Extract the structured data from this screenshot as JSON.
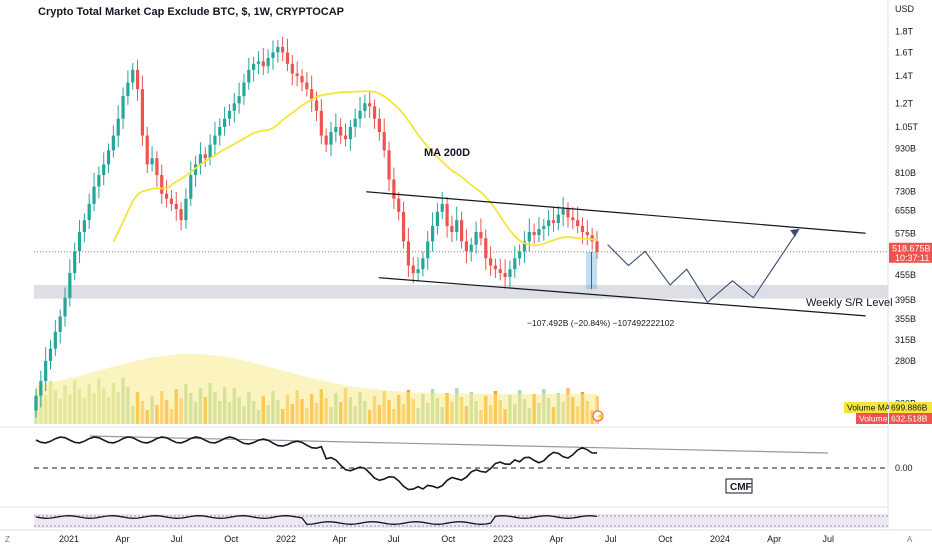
{
  "title": "Crypto Total Market Cap Exclude BTC, $, 1W, CRYPTOCAP",
  "chart_data": {
    "type": "candlestick",
    "currency_label": "USD",
    "y_scale": "log",
    "ylim": [
      0.196,
      1.9
    ],
    "y_ticks": [
      {
        "label": "1.8T",
        "value": 1.8
      },
      {
        "label": "1.6T",
        "value": 1.6
      },
      {
        "label": "1.4T",
        "value": 1.4
      },
      {
        "label": "1.2T",
        "value": 1.2
      },
      {
        "label": "1.05T",
        "value": 1.05
      },
      {
        "label": "930B",
        "value": 0.93
      },
      {
        "label": "810B",
        "value": 0.81
      },
      {
        "label": "730B",
        "value": 0.73
      },
      {
        "label": "655B",
        "value": 0.655
      },
      {
        "label": "575B",
        "value": 0.575
      },
      {
        "label": "455B",
        "value": 0.455
      },
      {
        "label": "395B",
        "value": 0.395
      },
      {
        "label": "355B",
        "value": 0.355
      },
      {
        "label": "315B",
        "value": 0.315
      },
      {
        "label": "280B",
        "value": 0.28
      },
      {
        "label": "220B",
        "value": 0.22
      }
    ],
    "x_ticks": [
      {
        "label": "2021",
        "date": "2021-01-01"
      },
      {
        "label": "Apr",
        "date": "2021-04-01"
      },
      {
        "label": "Jul",
        "date": "2021-07-01"
      },
      {
        "label": "Oct",
        "date": "2021-10-01"
      },
      {
        "label": "2022",
        "date": "2022-01-01"
      },
      {
        "label": "Apr",
        "date": "2022-04-01"
      },
      {
        "label": "Jul",
        "date": "2022-07-01"
      },
      {
        "label": "Oct",
        "date": "2022-10-01"
      },
      {
        "label": "2023",
        "date": "2023-01-01"
      },
      {
        "label": "Apr",
        "date": "2023-04-01"
      },
      {
        "label": "Jul",
        "date": "2023-07-01"
      },
      {
        "label": "Oct",
        "date": "2023-10-01"
      },
      {
        "label": "2024",
        "date": "2024-01-01"
      },
      {
        "label": "Apr",
        "date": "2024-04-01"
      },
      {
        "label": "Jul",
        "date": "2024-07-01"
      }
    ],
    "last_price": {
      "label": "518.675B",
      "countdown": "10:37:11",
      "value": 0.518675
    },
    "close_series_trillions": [
      0.23,
      0.25,
      0.28,
      0.3,
      0.33,
      0.36,
      0.4,
      0.46,
      0.52,
      0.58,
      0.62,
      0.68,
      0.75,
      0.8,
      0.85,
      0.92,
      1.0,
      1.1,
      1.25,
      1.35,
      1.45,
      1.3,
      1.0,
      0.85,
      0.88,
      0.8,
      0.72,
      0.7,
      0.68,
      0.66,
      0.62,
      0.7,
      0.8,
      0.85,
      0.9,
      0.88,
      0.95,
      1.0,
      1.05,
      1.1,
      1.15,
      1.2,
      1.25,
      1.35,
      1.45,
      1.5,
      1.52,
      1.48,
      1.55,
      1.6,
      1.65,
      1.6,
      1.5,
      1.42,
      1.4,
      1.35,
      1.3,
      1.22,
      1.15,
      1.0,
      0.95,
      1.02,
      1.05,
      1.0,
      0.98,
      1.05,
      1.1,
      1.15,
      1.2,
      1.18,
      1.1,
      1.02,
      0.92,
      0.78,
      0.7,
      0.65,
      0.55,
      0.48,
      0.46,
      0.47,
      0.5,
      0.55,
      0.6,
      0.65,
      0.68,
      0.6,
      0.58,
      0.62,
      0.55,
      0.52,
      0.54,
      0.58,
      0.56,
      0.5,
      0.48,
      0.47,
      0.46,
      0.45,
      0.47,
      0.5,
      0.52,
      0.55,
      0.58,
      0.57,
      0.59,
      0.6,
      0.62,
      0.61,
      0.64,
      0.66,
      0.63,
      0.62,
      0.6,
      0.58,
      0.57,
      0.55,
      0.518675
    ],
    "ma200": {
      "label": "MA 200D"
    },
    "channel": {
      "upper": [
        {
          "date": "2022-05-16",
          "value": 0.728
        },
        {
          "date": "2024-09-02",
          "value": 0.576
        }
      ],
      "lower": [
        {
          "date": "2022-06-06",
          "value": 0.448
        },
        {
          "date": "2024-09-02",
          "value": 0.361
        }
      ]
    },
    "support_zone": {
      "label": "Weekly S/R Level",
      "low": 0.398,
      "high": 0.43
    },
    "projection_path": [
      {
        "date": "2023-06-26",
        "value": 0.54
      },
      {
        "date": "2023-07-31",
        "value": 0.48
      },
      {
        "date": "2023-08-28",
        "value": 0.52
      },
      {
        "date": "2023-10-09",
        "value": 0.43
      },
      {
        "date": "2023-11-06",
        "value": 0.47
      },
      {
        "date": "2023-12-11",
        "value": 0.39
      },
      {
        "date": "2024-01-22",
        "value": 0.44
      },
      {
        "date": "2024-02-26",
        "value": 0.4
      },
      {
        "date": "2024-05-13",
        "value": 0.59
      }
    ],
    "measurement": {
      "label": "−107.492B (−20.84%) −107492222102"
    },
    "volume": {
      "ma_label": "Volume MA",
      "ma_value": "699.886B",
      "label": "Volume",
      "value": "632.518B"
    },
    "cmf": {
      "label": "CMF",
      "zero_label": "0.00"
    },
    "colors": {
      "up": "#26a69a",
      "down": "#ef5350",
      "ma": "#f5e53a",
      "trend": "#131722",
      "projection": "#3a4a72",
      "zone": "#d1d4dc"
    }
  }
}
